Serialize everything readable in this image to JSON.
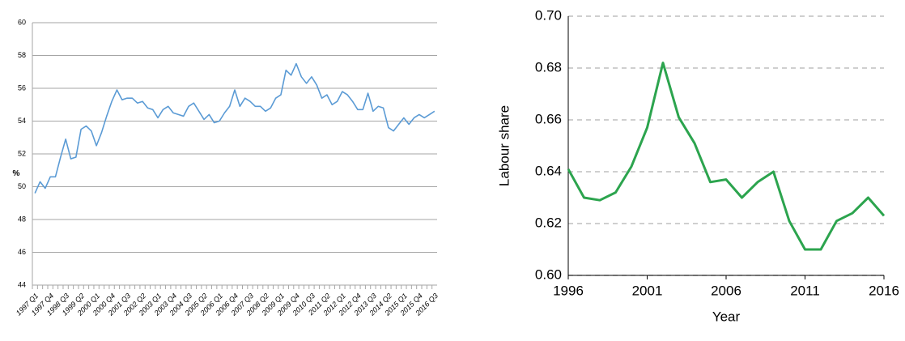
{
  "chart_data": [
    {
      "type": "line",
      "y_label": "%",
      "categories": [
        "1997 Q1",
        null,
        null,
        "1997 Q4",
        null,
        null,
        "1998 Q3",
        null,
        null,
        "1999 Q2",
        null,
        null,
        "2000 Q1",
        null,
        null,
        "2000 Q4",
        null,
        null,
        "2001 Q3",
        null,
        null,
        "2002 Q2",
        null,
        null,
        "2003 Q1",
        null,
        null,
        "2003 Q4",
        null,
        null,
        "2004 Q3",
        null,
        null,
        "2005 Q2",
        null,
        null,
        "2006 Q1",
        null,
        null,
        "2006 Q4",
        null,
        null,
        "2007 Q3",
        null,
        null,
        "2008 Q2",
        null,
        null,
        "2009 Q1",
        null,
        null,
        "2009 Q4",
        null,
        null,
        "2010 Q3",
        null,
        null,
        "2011 Q2",
        null,
        null,
        "2012 Q1",
        null,
        null,
        "2012 Q4",
        null,
        null,
        "2013 Q3",
        null,
        null,
        "2014 Q2",
        null,
        null,
        "2015 Q1",
        null,
        null,
        "2015 Q4",
        null,
        null,
        "2016 Q3"
      ],
      "values": [
        49.6,
        50.3,
        49.9,
        50.6,
        50.6,
        51.8,
        52.9,
        51.7,
        51.8,
        53.5,
        53.7,
        53.4,
        52.5,
        53.3,
        54.3,
        55.2,
        55.9,
        55.3,
        55.4,
        55.4,
        55.1,
        55.2,
        54.8,
        54.7,
        54.2,
        54.7,
        54.9,
        54.5,
        54.4,
        54.3,
        54.9,
        55.1,
        54.6,
        54.1,
        54.4,
        53.9,
        54.0,
        54.5,
        54.9,
        55.9,
        54.9,
        55.4,
        55.2,
        54.9,
        54.9,
        54.6,
        54.8,
        55.4,
        55.6,
        57.1,
        56.8,
        57.5,
        56.7,
        56.3,
        56.7,
        56.2,
        55.4,
        55.6,
        55.0,
        55.2,
        55.8,
        55.6,
        55.2,
        54.7,
        54.7,
        55.7,
        54.6,
        54.9,
        54.8,
        53.6,
        53.4,
        53.8,
        54.2,
        53.8,
        54.2,
        54.4,
        54.2,
        54.4,
        54.6
      ],
      "color": "#5b9bd5",
      "ylim": [
        44,
        60
      ],
      "yticks": [
        44,
        46,
        48,
        50,
        52,
        54,
        56,
        58,
        60
      ],
      "grid": "solid"
    },
    {
      "type": "line",
      "x_label": "Year",
      "y_label": "Labour share",
      "x": [
        1996,
        1997,
        1998,
        1999,
        2000,
        2001,
        2002,
        2003,
        2004,
        2005,
        2006,
        2007,
        2008,
        2009,
        2010,
        2011,
        2012,
        2013,
        2014,
        2015,
        2016
      ],
      "values": [
        0.641,
        0.63,
        0.629,
        0.632,
        0.642,
        0.657,
        0.682,
        0.661,
        0.651,
        0.636,
        0.637,
        0.63,
        0.636,
        0.64,
        0.621,
        0.61,
        0.61,
        0.621,
        0.624,
        0.63,
        0.623
      ],
      "color": "#2ca44e",
      "xlim": [
        1996,
        2016
      ],
      "xticks": [
        1996,
        2001,
        2006,
        2011,
        2016
      ],
      "ylim": [
        0.6,
        0.7
      ],
      "yticks": [
        {
          "value": 0.6,
          "label": "0.60"
        },
        {
          "value": 0.62,
          "label": "0.62"
        },
        {
          "value": 0.64,
          "label": "0.64"
        },
        {
          "value": 0.66,
          "label": "0.66"
        },
        {
          "value": 0.68,
          "label": "0.68"
        },
        {
          "value": 0.7,
          "label": "0.70"
        }
      ],
      "grid": "dashed"
    }
  ]
}
